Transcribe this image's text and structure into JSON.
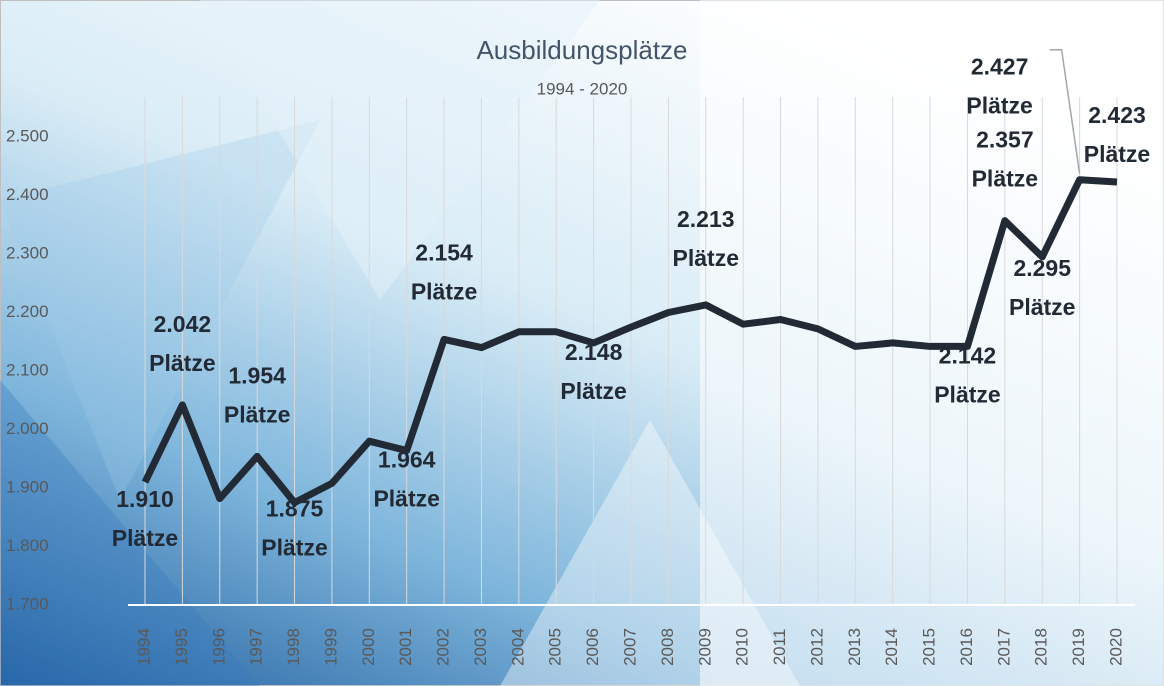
{
  "chart_data": {
    "type": "line",
    "title": "Ausbildungsplätze",
    "subtitle": "1994 - 2020",
    "categories": [
      "1994",
      "1995",
      "1996",
      "1997",
      "1998",
      "1999",
      "2000",
      "2001",
      "2002",
      "2003",
      "2004",
      "2005",
      "2006",
      "2007",
      "2008",
      "2009",
      "2010",
      "2011",
      "2012",
      "2013",
      "2014",
      "2015",
      "2016",
      "2017",
      "2018",
      "2019",
      "2020"
    ],
    "series": [
      {
        "name": "Ausbildungsplätze",
        "color": "#222a35",
        "values": [
          1910,
          2042,
          1882,
          1954,
          1875,
          1908,
          1980,
          1964,
          2154,
          2140,
          2167,
          2167,
          2148,
          2175,
          2200,
          2213,
          2180,
          2188,
          2172,
          2142,
          2148,
          2142,
          2142,
          2357,
          2295,
          2427,
          2423
        ],
        "value_labels": [
          "1.910 Plätze",
          "2.042 Plätze",
          null,
          "1.954 Plätze",
          "1.875 Plätze",
          null,
          null,
          "1.964 Plätze",
          "2.154 Plätze",
          null,
          null,
          null,
          "2.148 Plätze",
          null,
          null,
          "2.213 Plätze",
          null,
          null,
          null,
          null,
          null,
          null,
          "2.142 Plätze",
          "2.357 Plätze",
          "2.295 Plätze",
          "2.427 Plätze",
          "2.423 Plätze"
        ]
      }
    ],
    "ylim": [
      1700,
      2500
    ],
    "yticks": [
      {
        "value": 1700,
        "label": "1.700"
      },
      {
        "value": 1800,
        "label": "1.800"
      },
      {
        "value": 1900,
        "label": "1.900"
      },
      {
        "value": 2000,
        "label": "2.000"
      },
      {
        "value": 2100,
        "label": "2.100"
      },
      {
        "value": 2200,
        "label": "2.200"
      },
      {
        "value": 2300,
        "label": "2.300"
      },
      {
        "value": 2400,
        "label": "2.400"
      },
      {
        "value": 2500,
        "label": "2.500"
      }
    ],
    "grid": true
  }
}
